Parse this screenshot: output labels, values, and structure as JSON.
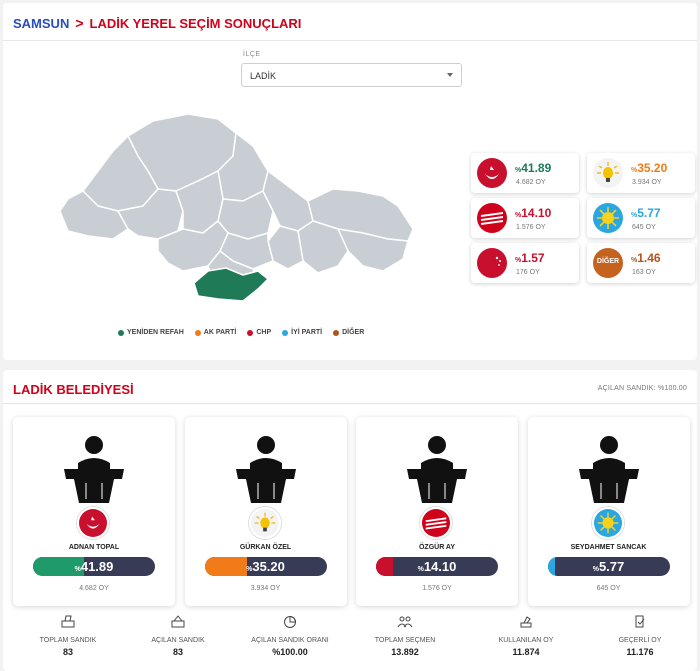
{
  "breadcrumb": {
    "city": "SAMSUN",
    "separator": ">",
    "title": "LADİK YEREL SEÇİM SONUÇLARI"
  },
  "filter": {
    "label": "İLÇE",
    "value": "LADİK"
  },
  "legend": [
    {
      "label": "YENİDEN REFAH",
      "color": "#1f7a57"
    },
    {
      "label": "AK PARTİ",
      "color": "#f07b18"
    },
    {
      "label": "CHP",
      "color": "#c8102e"
    },
    {
      "label": "İYİ PARTİ",
      "color": "#2aa6e0"
    },
    {
      "label": "DİĞER",
      "color": "#b5521a"
    }
  ],
  "party_results": [
    {
      "party_icon": "yeniden-refah-logo",
      "prefix": "%",
      "percent": "41.89",
      "votes": "4.682 OY",
      "color": "#1f7a57"
    },
    {
      "party_icon": "ak-parti-logo",
      "prefix": "%",
      "percent": "35.20",
      "votes": "3.934 OY",
      "color": "#f07b18"
    },
    {
      "party_icon": "chp-logo",
      "prefix": "%",
      "percent": "14.10",
      "votes": "1.576 OY",
      "color": "#c8102e"
    },
    {
      "party_icon": "iyi-parti-logo",
      "prefix": "%",
      "percent": "5.77",
      "votes": "645 OY",
      "color": "#2aa6e0"
    },
    {
      "party_icon": "saadet-logo",
      "prefix": "%",
      "percent": "1.57",
      "votes": "176 OY",
      "color": "#c8102e"
    },
    {
      "party_icon": "diger-logo",
      "prefix": "%",
      "percent": "1.46",
      "votes": "163 OY",
      "color": "#b5521a"
    }
  ],
  "municipality": {
    "title": "LADİK BELEDİYESİ",
    "opened_ballot": "AÇILAN SANDIK: %100.00"
  },
  "candidates": [
    {
      "name": "ADNAN TOPAL",
      "prefix": "%",
      "percent": "41.89",
      "share": 0.4189,
      "votes": "4.682 OY",
      "color": "#1f9a6a",
      "party_icon": "yeniden-refah-logo"
    },
    {
      "name": "GÜRKAN ÖZEL",
      "prefix": "%",
      "percent": "35.20",
      "share": 0.352,
      "votes": "3.934 OY",
      "color": "#f07b18",
      "party_icon": "ak-parti-logo"
    },
    {
      "name": "ÖZGÜR AY",
      "prefix": "%",
      "percent": "14.10",
      "share": 0.141,
      "votes": "1.576 OY",
      "color": "#c8102e",
      "party_icon": "chp-logo"
    },
    {
      "name": "SEYDAHMET SANCAK",
      "prefix": "%",
      "percent": "5.77",
      "share": 0.0577,
      "votes": "645 OY",
      "color": "#2aa6e0",
      "party_icon": "iyi-parti-logo"
    }
  ],
  "stats": [
    {
      "icon": "ballot-box-icon",
      "label": "TOPLAM SANDIK",
      "value": "83"
    },
    {
      "icon": "open-ballot-box-icon",
      "label": "AÇILAN SANDIK",
      "value": "83"
    },
    {
      "icon": "pie-chart-icon",
      "label": "AÇILAN SANDIK ORANI",
      "value": "%100.00"
    },
    {
      "icon": "voters-icon",
      "label": "TOPLAM SEÇMEN",
      "value": "13.892"
    },
    {
      "icon": "vote-cast-icon",
      "label": "KULLANILAN OY",
      "value": "11.874"
    },
    {
      "icon": "valid-vote-icon",
      "label": "GEÇERLİ OY",
      "value": "11.176"
    }
  ]
}
